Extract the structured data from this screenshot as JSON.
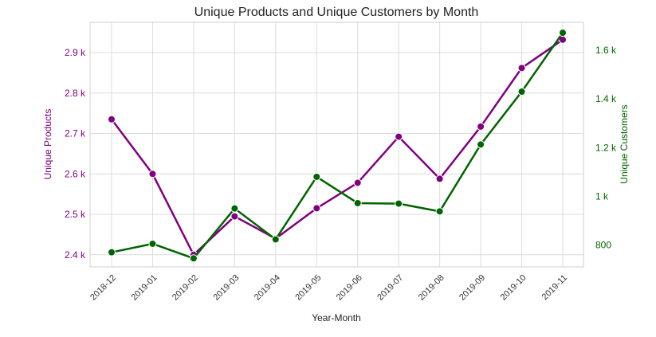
{
  "chart_data": {
    "type": "line",
    "title": "Unique Products and Unique Customers by Month",
    "xlabel": "Year-Month",
    "ylabel": "Unique Products",
    "y2label": "Unique Customers",
    "categories": [
      "2018-12",
      "2019-01",
      "2019-02",
      "2019-03",
      "2019-04",
      "2019-05",
      "2019-06",
      "2019-07",
      "2019-08",
      "2019-09",
      "2019-10",
      "2019-11"
    ],
    "ylim": [
      2370,
      2975
    ],
    "y2lim": [
      710,
      1715
    ],
    "yticks": [
      {
        "value": 2400,
        "label": "2.4 k"
      },
      {
        "value": 2500,
        "label": "2.5 k"
      },
      {
        "value": 2600,
        "label": "2.6 k"
      },
      {
        "value": 2700,
        "label": "2.7 k"
      },
      {
        "value": 2800,
        "label": "2.8 k"
      },
      {
        "value": 2900,
        "label": "2.9 k"
      }
    ],
    "y2ticks": [
      {
        "value": 800,
        "label": "800"
      },
      {
        "value": 1000,
        "label": "1 k"
      },
      {
        "value": 1200,
        "label": "1.2 k"
      },
      {
        "value": 1400,
        "label": "1.4 k"
      },
      {
        "value": 1600,
        "label": "1.6 k"
      }
    ],
    "grid": true,
    "series": [
      {
        "axis": "left",
        "color": "#800080",
        "values": [
          2735,
          2600,
          2400,
          2495,
          2440,
          2515,
          2578,
          2692,
          2588,
          2717,
          2862,
          2932
        ]
      },
      {
        "axis": "right",
        "color": "#006400",
        "values": [
          770,
          805,
          745,
          950,
          823,
          1080,
          972,
          970,
          938,
          1213,
          1430,
          1672
        ]
      }
    ]
  }
}
